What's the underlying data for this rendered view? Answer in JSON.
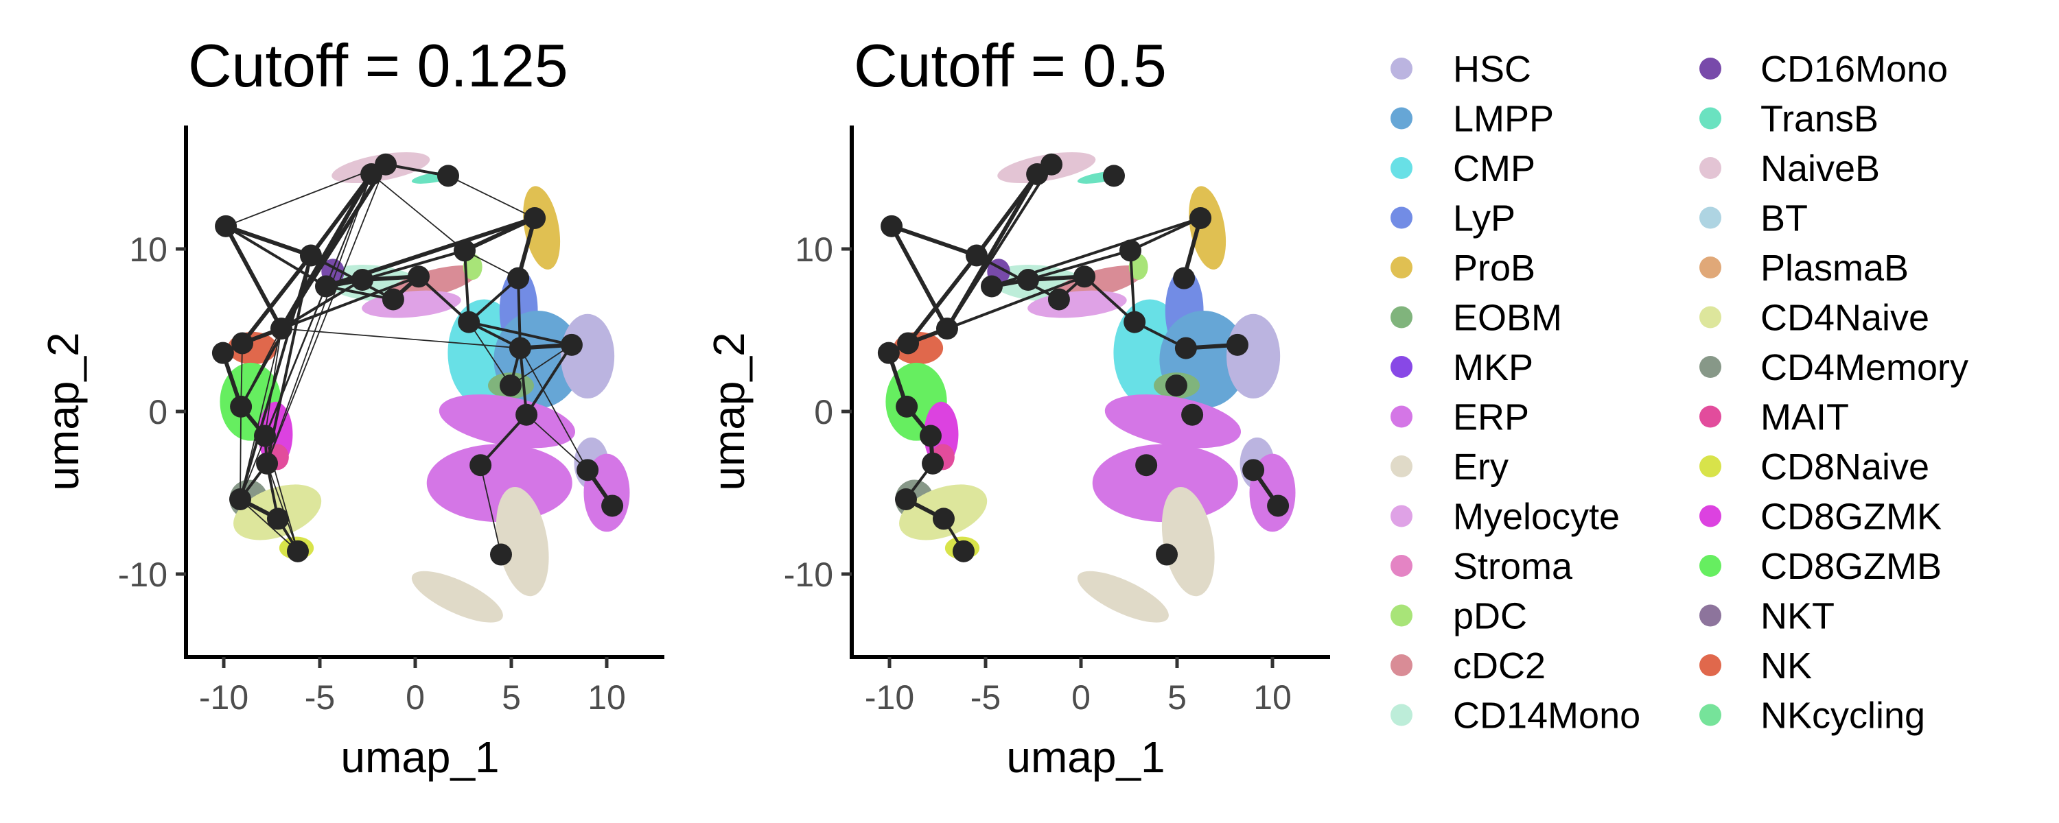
{
  "chart_data": {
    "type": "scatter",
    "description": "UMAP embedding of cells colored by cell type with an overlaid cluster connectivity graph (nodes = cluster centroids, edges = connections above cutoff)",
    "xlabel": "umap_1",
    "ylabel": "umap_2",
    "xlim": [
      -12,
      12.5
    ],
    "ylim": [
      -15,
      16.5
    ],
    "x_ticks": [
      -10,
      -5,
      0,
      5,
      10
    ],
    "y_ticks": [
      -10,
      0,
      10
    ],
    "grid": false,
    "legend_position": "right",
    "legend": [
      {
        "label": "HSC",
        "color": "#BBB4E0"
      },
      {
        "label": "LMPP",
        "color": "#66A6D6"
      },
      {
        "label": "CMP",
        "color": "#68E0E6"
      },
      {
        "label": "LyP",
        "color": "#728CE5"
      },
      {
        "label": "ProB",
        "color": "#E0C052"
      },
      {
        "label": "EOBM",
        "color": "#80B47C"
      },
      {
        "label": "MKP",
        "color": "#8848E6"
      },
      {
        "label": "ERP",
        "color": "#D476E6"
      },
      {
        "label": "Ery",
        "color": "#E0DAC8"
      },
      {
        "label": "Myelocyte",
        "color": "#DFA2E6"
      },
      {
        "label": "Stroma",
        "color": "#E484C4"
      },
      {
        "label": "pDC",
        "color": "#A8E478"
      },
      {
        "label": "cDC2",
        "color": "#D98C96"
      },
      {
        "label": "CD14Mono",
        "color": "#BDEDD9"
      },
      {
        "label": "CD16Mono",
        "color": "#784AAA"
      },
      {
        "label": "TransB",
        "color": "#6AE2C0"
      },
      {
        "label": "NaiveB",
        "color": "#E3C4D4"
      },
      {
        "label": "BT",
        "color": "#AED4E2"
      },
      {
        "label": "PlasmaB",
        "color": "#E0A878"
      },
      {
        "label": "CD4Naive",
        "color": "#DDE69C"
      },
      {
        "label": "CD4Memory",
        "color": "#879888"
      },
      {
        "label": "MAIT",
        "color": "#E24C9C"
      },
      {
        "label": "CD8Naive",
        "color": "#D8E34A"
      },
      {
        "label": "CD8GZMK",
        "color": "#DC42E0"
      },
      {
        "label": "CD8GZMB",
        "color": "#66EE60"
      },
      {
        "label": "NKT",
        "color": "#8D749C"
      },
      {
        "label": "NK",
        "color": "#E0684C"
      },
      {
        "label": "NKcycling",
        "color": "#76E39A"
      }
    ],
    "nodes": [
      {
        "id": 1,
        "x": -1.54,
        "y": 15.2
      },
      {
        "id": 2,
        "x": -2.29,
        "y": 14.6
      },
      {
        "id": 3,
        "x": 1.72,
        "y": 14.5
      },
      {
        "id": 4,
        "x": -9.89,
        "y": 11.4
      },
      {
        "id": 5,
        "x": 6.24,
        "y": 11.9
      },
      {
        "id": 6,
        "x": -5.45,
        "y": 9.6
      },
      {
        "id": 7,
        "x": 2.58,
        "y": 9.9
      },
      {
        "id": 8,
        "x": 5.38,
        "y": 8.2
      },
      {
        "id": 9,
        "x": -4.66,
        "y": 7.7
      },
      {
        "id": 10,
        "x": -2.76,
        "y": 8.1
      },
      {
        "id": 11,
        "x": 0.18,
        "y": 8.3
      },
      {
        "id": 12,
        "x": -1.15,
        "y": 6.9
      },
      {
        "id": 13,
        "x": 2.8,
        "y": 5.5
      },
      {
        "id": 14,
        "x": -6.99,
        "y": 5.1
      },
      {
        "id": 15,
        "x": -9.03,
        "y": 4.2
      },
      {
        "id": 16,
        "x": -10.04,
        "y": 3.6
      },
      {
        "id": 17,
        "x": 5.48,
        "y": 3.9
      },
      {
        "id": 18,
        "x": 8.17,
        "y": 4.1
      },
      {
        "id": 19,
        "x": 4.98,
        "y": 1.6
      },
      {
        "id": 20,
        "x": 5.81,
        "y": -0.2
      },
      {
        "id": 21,
        "x": -9.1,
        "y": 0.3
      },
      {
        "id": 22,
        "x": -7.85,
        "y": -1.5
      },
      {
        "id": 23,
        "x": -7.74,
        "y": -3.2
      },
      {
        "id": 24,
        "x": 3.41,
        "y": -3.3
      },
      {
        "id": 25,
        "x": 9.0,
        "y": -3.6
      },
      {
        "id": 26,
        "x": 10.29,
        "y": -5.8
      },
      {
        "id": 27,
        "x": -9.14,
        "y": -5.4
      },
      {
        "id": 28,
        "x": -7.17,
        "y": -6.6
      },
      {
        "id": 29,
        "x": -6.13,
        "y": -8.6
      },
      {
        "id": 30,
        "x": 4.48,
        "y": -8.8
      }
    ],
    "clusters": [
      {
        "label": "NaiveB",
        "x": -1.8,
        "y": 15.0,
        "rx": 2.6,
        "ry": 0.8,
        "rot": 10
      },
      {
        "label": "TransB",
        "x": 1.0,
        "y": 14.4,
        "rx": 1.2,
        "ry": 0.3,
        "rot": 10
      },
      {
        "label": "ProB",
        "x": 6.6,
        "y": 11.3,
        "rx": 0.9,
        "ry": 2.6,
        "rot": 10
      },
      {
        "label": "CD14Mono",
        "x": -2.2,
        "y": 7.9,
        "rx": 2.6,
        "ry": 1.1,
        "rot": -5
      },
      {
        "label": "cDC2",
        "x": 0.9,
        "y": 7.9,
        "rx": 2.5,
        "ry": 0.8,
        "rot": 15
      },
      {
        "label": "Myelocyte",
        "x": -0.2,
        "y": 6.6,
        "rx": 2.6,
        "ry": 0.8,
        "rot": 5
      },
      {
        "label": "CD16Mono",
        "x": -4.3,
        "y": 8.6,
        "rx": 0.6,
        "ry": 0.8,
        "rot": 0
      },
      {
        "label": "pDC",
        "x": 3.0,
        "y": 8.9,
        "rx": 0.5,
        "ry": 0.8,
        "rot": 0
      },
      {
        "label": "CMP",
        "x": 3.6,
        "y": 3.6,
        "rx": 1.9,
        "ry": 3.3,
        "rot": 0
      },
      {
        "label": "LyP",
        "x": 5.4,
        "y": 6.2,
        "rx": 1.0,
        "ry": 2.6,
        "rot": 0
      },
      {
        "label": "LMPP",
        "x": 6.4,
        "y": 3.2,
        "rx": 2.3,
        "ry": 3.0,
        "rot": 0
      },
      {
        "label": "HSC",
        "x": 9.0,
        "y": 3.4,
        "rx": 1.4,
        "ry": 2.6,
        "rot": 0
      },
      {
        "label": "EOBM",
        "x": 5.0,
        "y": 1.6,
        "rx": 1.2,
        "ry": 0.8,
        "rot": 0
      },
      {
        "label": "ERP",
        "x": 4.8,
        "y": -0.6,
        "rx": 3.6,
        "ry": 1.5,
        "rot": -10
      },
      {
        "label": "ERP",
        "x": 4.4,
        "y": -4.4,
        "rx": 3.8,
        "ry": 2.4,
        "rot": 0
      },
      {
        "label": "Ery",
        "x": 5.6,
        "y": -8.0,
        "rx": 1.3,
        "ry": 3.4,
        "rot": 10
      },
      {
        "label": "Ery",
        "x": 2.2,
        "y": -11.4,
        "rx": 2.6,
        "ry": 1.0,
        "rot": -25
      },
      {
        "label": "HSC",
        "x": 9.2,
        "y": -3.2,
        "rx": 0.9,
        "ry": 1.6,
        "rot": 0
      },
      {
        "label": "ERP",
        "x": 10.0,
        "y": -5.0,
        "rx": 1.2,
        "ry": 2.4,
        "rot": 0
      },
      {
        "label": "NK",
        "x": -8.5,
        "y": 3.9,
        "rx": 1.3,
        "ry": 1.0,
        "rot": 0
      },
      {
        "label": "CD8GZMB",
        "x": -8.6,
        "y": 0.6,
        "rx": 1.6,
        "ry": 2.4,
        "rot": 0
      },
      {
        "label": "CD8GZMK",
        "x": -7.3,
        "y": -1.4,
        "rx": 0.9,
        "ry": 2.0,
        "rot": 0
      },
      {
        "label": "MAIT",
        "x": -7.2,
        "y": -2.8,
        "rx": 0.6,
        "ry": 0.8,
        "rot": 0
      },
      {
        "label": "CD4Memory",
        "x": -8.7,
        "y": -5.4,
        "rx": 1.0,
        "ry": 1.2,
        "rot": 0
      },
      {
        "label": "CD4Naive",
        "x": -7.2,
        "y": -6.2,
        "rx": 2.4,
        "ry": 1.5,
        "rot": 20
      },
      {
        "label": "CD8Naive",
        "x": -6.2,
        "y": -8.4,
        "rx": 0.9,
        "ry": 0.7,
        "rot": 0
      }
    ],
    "panels": [
      {
        "title": "Cutoff = 0.125",
        "edges": [
          [
            4,
            6,
            3
          ],
          [
            4,
            14,
            3
          ],
          [
            2,
            6,
            3
          ],
          [
            2,
            14,
            3
          ],
          [
            1,
            14,
            3
          ],
          [
            6,
            15,
            3
          ],
          [
            6,
            12,
            2
          ],
          [
            14,
            15,
            3
          ],
          [
            15,
            16,
            3
          ],
          [
            9,
            10,
            3
          ],
          [
            10,
            11,
            3
          ],
          [
            11,
            12,
            3
          ],
          [
            14,
            11,
            2
          ],
          [
            5,
            7,
            3
          ],
          [
            5,
            9,
            3
          ],
          [
            7,
            10,
            2
          ],
          [
            11,
            13,
            2
          ],
          [
            7,
            13,
            2
          ],
          [
            5,
            8,
            3
          ],
          [
            13,
            17,
            2
          ],
          [
            17,
            18,
            3
          ],
          [
            16,
            21,
            3
          ],
          [
            21,
            22,
            3
          ],
          [
            22,
            23,
            2
          ],
          [
            23,
            27,
            2
          ],
          [
            27,
            28,
            3
          ],
          [
            28,
            29,
            2
          ],
          [
            25,
            26,
            3
          ],
          [
            4,
            1,
            1
          ],
          [
            1,
            3,
            2
          ],
          [
            3,
            5,
            1
          ],
          [
            2,
            7,
            1
          ],
          [
            4,
            9,
            2
          ],
          [
            14,
            17,
            1
          ],
          [
            13,
            19,
            1
          ],
          [
            17,
            19,
            2
          ],
          [
            17,
            20,
            2
          ],
          [
            18,
            20,
            2
          ],
          [
            17,
            25,
            1
          ],
          [
            18,
            19,
            1
          ],
          [
            20,
            24,
            2
          ],
          [
            24,
            30,
            1
          ],
          [
            20,
            25,
            1
          ],
          [
            8,
            17,
            2
          ],
          [
            8,
            13,
            2
          ],
          [
            2,
            21,
            2
          ],
          [
            2,
            22,
            1
          ],
          [
            2,
            23,
            1
          ],
          [
            2,
            27,
            1
          ],
          [
            1,
            23,
            1
          ],
          [
            6,
            27,
            2
          ],
          [
            6,
            23,
            2
          ],
          [
            14,
            21,
            1
          ],
          [
            14,
            22,
            1
          ],
          [
            14,
            27,
            1
          ],
          [
            15,
            21,
            1
          ],
          [
            21,
            27,
            1
          ],
          [
            23,
            28,
            2
          ],
          [
            23,
            29,
            1
          ],
          [
            27,
            29,
            1
          ],
          [
            22,
            29,
            1
          ],
          [
            7,
            8,
            1
          ],
          [
            13,
            18,
            2
          ],
          [
            9,
            12,
            2
          ],
          [
            10,
            14,
            2
          ]
        ]
      },
      {
        "title": "Cutoff = 0.5",
        "edges": [
          [
            4,
            6,
            3
          ],
          [
            4,
            14,
            3
          ],
          [
            2,
            6,
            3
          ],
          [
            2,
            14,
            3
          ],
          [
            1,
            14,
            2
          ],
          [
            6,
            15,
            3
          ],
          [
            6,
            12,
            2
          ],
          [
            14,
            15,
            3
          ],
          [
            15,
            16,
            3
          ],
          [
            9,
            10,
            3
          ],
          [
            10,
            11,
            3
          ],
          [
            11,
            12,
            2
          ],
          [
            14,
            11,
            2
          ],
          [
            5,
            7,
            2
          ],
          [
            5,
            9,
            2
          ],
          [
            7,
            10,
            2
          ],
          [
            11,
            13,
            2
          ],
          [
            7,
            13,
            2
          ],
          [
            5,
            8,
            3
          ],
          [
            13,
            17,
            2
          ],
          [
            17,
            18,
            3
          ],
          [
            16,
            21,
            3
          ],
          [
            21,
            22,
            3
          ],
          [
            22,
            23,
            3
          ],
          [
            23,
            27,
            2
          ],
          [
            27,
            28,
            3
          ],
          [
            28,
            29,
            2
          ],
          [
            25,
            26,
            3
          ]
        ]
      }
    ]
  },
  "figure": {
    "panels": [
      {
        "title": "Cutoff = 0.125",
        "xlabel": "umap_1",
        "ylabel": "umap_2",
        "x_tick_labels": [
          "-10",
          "-5",
          "0",
          "5",
          "10"
        ],
        "y_tick_labels": [
          "10",
          "0",
          "-10"
        ]
      },
      {
        "title": "Cutoff = 0.5",
        "xlabel": "umap_1",
        "ylabel": "umap_2",
        "x_tick_labels": [
          "-10",
          "-5",
          "0",
          "5",
          "10"
        ],
        "y_tick_labels": [
          "10",
          "0",
          "-10"
        ]
      }
    ]
  },
  "colors": {
    "node": "#262626",
    "axis": "#000000",
    "tick_label": "#4d4d4d"
  }
}
